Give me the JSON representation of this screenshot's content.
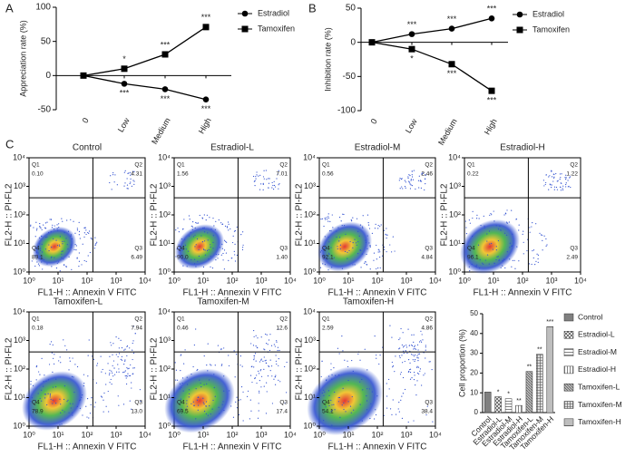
{
  "chart_data": [
    {
      "type": "line",
      "panel_label": "A",
      "ylabel": "Appreciation rate (%)",
      "categories": [
        "0",
        "Low",
        "Medium",
        "High"
      ],
      "series": [
        {
          "name": "Estradiol",
          "color": "#000000",
          "marker": "circle",
          "values": [
            0,
            -12,
            -20,
            -35
          ],
          "annotations": [
            null,
            "***",
            "***",
            "***"
          ]
        },
        {
          "name": "Tamoxifen",
          "color": "#000000",
          "marker": "square",
          "values": [
            0,
            10,
            31,
            71
          ],
          "annotations": [
            null,
            "*",
            "***",
            "***"
          ]
        }
      ],
      "ylim": [
        -50,
        100
      ],
      "yticks": [
        -50,
        0,
        50,
        100
      ],
      "legend": "right"
    },
    {
      "type": "line",
      "panel_label": "B",
      "ylabel": "Inhibition rate (%)",
      "categories": [
        "0",
        "Low",
        "Medium",
        "High"
      ],
      "series": [
        {
          "name": "Estradiol",
          "color": "#000000",
          "marker": "circle",
          "values": [
            0,
            12,
            20,
            35
          ],
          "annotations": [
            null,
            "***",
            "***",
            "***"
          ]
        },
        {
          "name": "Tamoxifen",
          "color": "#000000",
          "marker": "square",
          "values": [
            0,
            -10,
            -32,
            -71
          ],
          "annotations": [
            null,
            "*",
            "***",
            "***"
          ]
        }
      ],
      "ylim": [
        -100,
        50
      ],
      "yticks": [
        -100,
        -50,
        0,
        50
      ],
      "legend": "right"
    },
    {
      "type": "flow",
      "panel_label": "C",
      "xlabel": "FL1-H :: Annexin V FITC",
      "ylabel": "FL2-H :: PI-FL2",
      "log_scale": true,
      "xlim": [
        1,
        10000
      ],
      "ylim": [
        1,
        10000
      ],
      "xticks": [
        {
          "value": 1,
          "label": "10⁰"
        },
        {
          "value": 10,
          "label": "10¹"
        },
        {
          "value": 100,
          "label": "10²"
        },
        {
          "value": 1000,
          "label": "10³"
        },
        {
          "value": 10000,
          "label": "10⁴"
        }
      ],
      "yticks": [
        {
          "value": 1,
          "label": "10⁰"
        },
        {
          "value": 10,
          "label": "10¹"
        },
        {
          "value": 100,
          "label": "10²"
        },
        {
          "value": 1000,
          "label": "10³"
        },
        {
          "value": 10000,
          "label": "10⁴"
        }
      ],
      "quadrant_names": [
        "Q1",
        "Q2",
        "Q3",
        "Q4"
      ],
      "panels": [
        {
          "title": "Control",
          "quadrants": [
            "0.10",
            "4.31",
            "6.49",
            "89.1"
          ]
        },
        {
          "title": "Estradiol-L",
          "quadrants": [
            "1.56",
            "7.01",
            "1.40",
            "90.0"
          ]
        },
        {
          "title": "Estradiol-M",
          "quadrants": [
            "0.56",
            "2.46",
            "4.84",
            "92.1"
          ]
        },
        {
          "title": "Estradiol-H",
          "quadrants": [
            "0.22",
            "1.22",
            "2.49",
            "96.1"
          ]
        },
        {
          "title": "Tamoxifen-L",
          "quadrants": [
            "0.18",
            "7.94",
            "13.0",
            "78.9"
          ]
        },
        {
          "title": "Tamoxifen-M",
          "quadrants": [
            "0.46",
            "12.6",
            "17.4",
            "69.5"
          ]
        },
        {
          "title": "Tamoxifen-H",
          "quadrants": [
            "2.59",
            "4.86",
            "38.4",
            "54.1"
          ]
        }
      ]
    },
    {
      "type": "bar",
      "ylabel": "Cell proportion (%)",
      "categories": [
        "Control",
        "Estradiol-L",
        "Estradiol-M",
        "Estradiol-H",
        "Tamoxifen-L",
        "Tamoxifen-M",
        "Tamoxifen-H"
      ],
      "values": [
        10.4,
        8,
        7,
        3.6,
        20.8,
        29.5,
        43.5
      ],
      "annotations": [
        null,
        "*",
        "*",
        "**",
        "**",
        "**",
        "***"
      ],
      "color": "#808080",
      "ylim": [
        0,
        50
      ],
      "yticks": [
        0,
        10,
        20,
        30,
        40,
        50
      ],
      "legend": "right"
    }
  ]
}
